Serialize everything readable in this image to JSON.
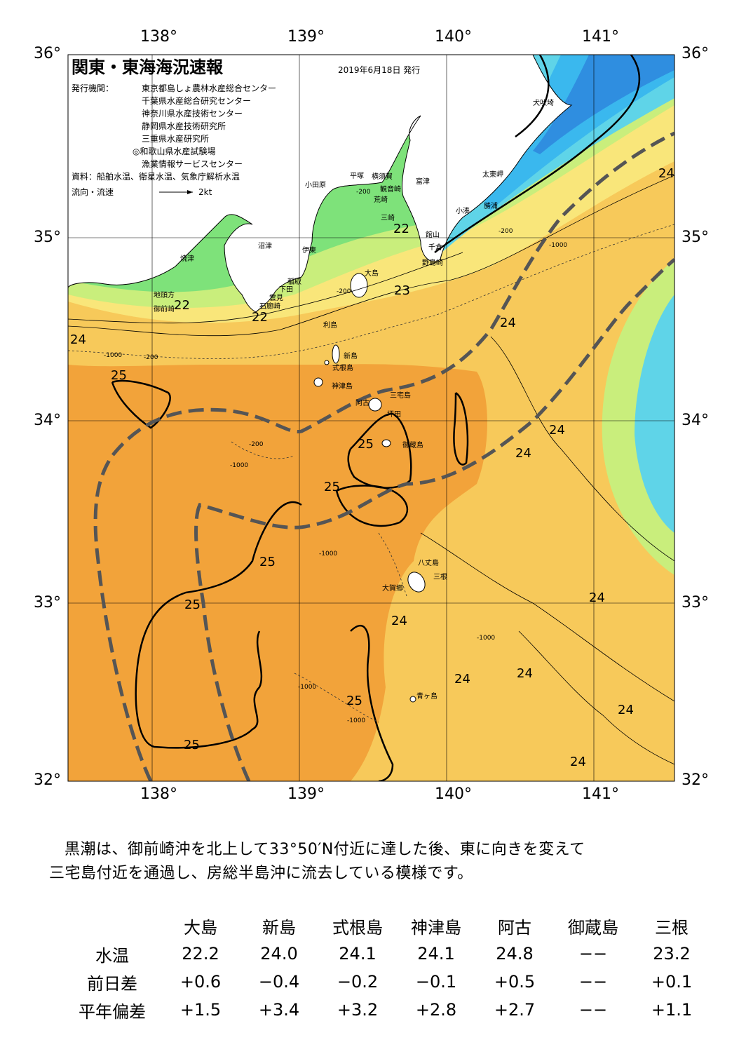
{
  "map": {
    "title": "関東・東海海況速報",
    "issue_date": "2019年6月18日 発行",
    "issuers_label": "発行機関：",
    "issuers": [
      "東京都島しょ農林水産総合センター",
      "千葉県水産総合研究センター",
      "神奈川県水産技術センター",
      "静岡県水産技術研究所",
      "三重県水産研究所",
      "◎和歌山県水産試験場",
      "漁業情報サービスセンター"
    ],
    "sources": "資料：船舶水温、衛星水温、気象庁解析水温",
    "flow_legend_label": "流向・流速",
    "flow_legend_scale": "2kt",
    "lon_ticks": [
      "138°",
      "139°",
      "140°",
      "141°"
    ],
    "lat_ticks": [
      "36°",
      "35°",
      "34°",
      "33°",
      "32°"
    ],
    "place_names": [
      "犬吠埼",
      "太東岬",
      "勝浦",
      "小湊",
      "富津",
      "横須賀",
      "観音崎",
      "荒崎",
      "三崎",
      "館山",
      "千倉",
      "野島崎",
      "平塚",
      "小田原",
      "沼津",
      "伊東",
      "大島",
      "稲取",
      "下田",
      "雲見",
      "石廊崎",
      "焼津",
      "地頭方",
      "御前崎",
      "利島",
      "新島",
      "式根島",
      "神津島",
      "三宅島",
      "阿古",
      "坪田",
      "御蔵島",
      "八丈島",
      "三根",
      "大賀郷",
      "青ヶ島"
    ],
    "depth_labels": [
      "-200",
      "-1000"
    ],
    "isotherm_labels": [
      "22",
      "23",
      "24",
      "25"
    ],
    "colors": {
      "temp_25": "#f2a33a",
      "temp_24": "#f7c95a",
      "temp_23": "#f9e67a",
      "temp_22": "#c9ee7c",
      "temp_21": "#7ee27a",
      "temp_20": "#54d39a",
      "temp_19": "#5fd4e8",
      "temp_18": "#3ab8ee",
      "temp_17": "#2f8ee0",
      "land": "#ffffff",
      "kuroshio": "#555555"
    }
  },
  "summary": {
    "line1": "黒潮は、御前崎沖を北上して33°50′N付近に達した後、東に向きを変えて",
    "line2": "三宅島付近を通過し、房総半島沖に流去している模様です。"
  },
  "table": {
    "columns": [
      "大島",
      "新島",
      "式根島",
      "神津島",
      "阿古",
      "御蔵島",
      "三根"
    ],
    "rows": [
      {
        "label": "水温",
        "values": [
          "22.2",
          "24.0",
          "24.1",
          "24.1",
          "24.8",
          "−−",
          "23.2"
        ]
      },
      {
        "label": "前日差",
        "values": [
          "+0.6",
          "−0.4",
          "−0.2",
          "−0.1",
          "+0.5",
          "−−",
          "+0.1"
        ]
      },
      {
        "label": "平年偏差",
        "values": [
          "+1.5",
          "+3.4",
          "+3.2",
          "+2.8",
          "+2.7",
          "−−",
          "+1.1"
        ]
      }
    ]
  }
}
